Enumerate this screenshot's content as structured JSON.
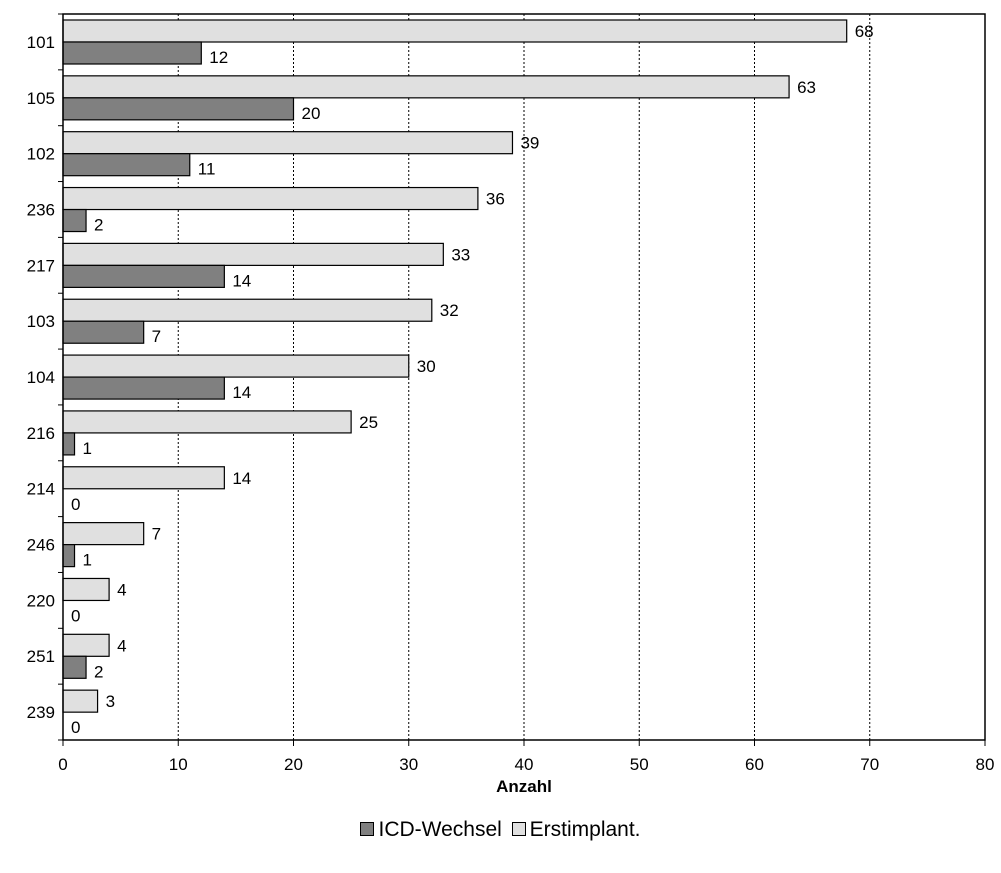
{
  "chart_data": {
    "type": "bar",
    "orientation": "horizontal",
    "categories": [
      "101",
      "105",
      "102",
      "236",
      "217",
      "103",
      "104",
      "216",
      "214",
      "246",
      "220",
      "251",
      "239"
    ],
    "series": [
      {
        "name": "Erstimplant.",
        "color": "#e0e0e0",
        "values": [
          68,
          63,
          39,
          36,
          33,
          32,
          30,
          25,
          14,
          7,
          4,
          4,
          3
        ]
      },
      {
        "name": "ICD-Wechsel",
        "color": "#808080",
        "values": [
          12,
          20,
          11,
          2,
          14,
          7,
          14,
          1,
          0,
          1,
          0,
          2,
          0
        ]
      }
    ],
    "xlabel": "Anzahl",
    "xlim": [
      0,
      80
    ],
    "xticks": [
      "0",
      "10",
      "20",
      "30",
      "40",
      "50",
      "60",
      "70",
      "80"
    ],
    "grid": "vertical dashed",
    "legend": {
      "position": "bottom",
      "items": [
        {
          "label": "ICD-Wechsel",
          "color": "#808080"
        },
        {
          "label": "Erstimplant.",
          "color": "#e0e0e0"
        }
      ]
    }
  }
}
